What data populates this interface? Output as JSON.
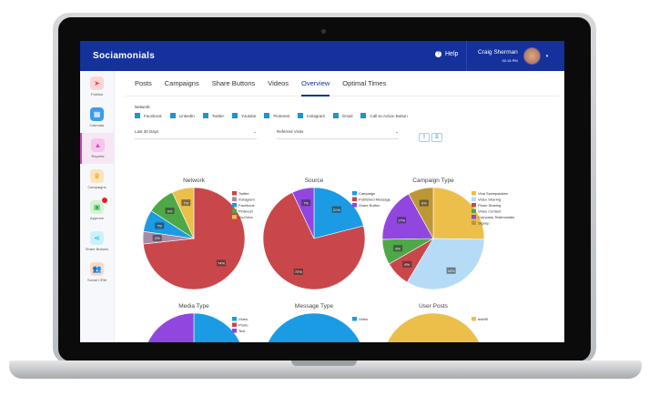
{
  "header": {
    "logo": "Sociamonials",
    "help": "Help",
    "user_name": "Craig Sherman",
    "time": "02:16 PM"
  },
  "sidebar": {
    "items": [
      {
        "label": "Publish",
        "icon": "paper-plane-icon",
        "color": "#fcd5d5",
        "fg": "#e84a4a"
      },
      {
        "label": "Calendar",
        "icon": "calendar-icon",
        "color": "#3b9cf0",
        "fg": "#fff"
      },
      {
        "label": "Reports",
        "icon": "chart-icon",
        "color": "#f7c6ee",
        "fg": "#d050c0"
      },
      {
        "label": "Campaigns",
        "icon": "trophy-icon",
        "color": "#fde3b8",
        "fg": "#e7a326"
      },
      {
        "label": "Approve",
        "icon": "image-check-icon",
        "color": "#d3f3d6",
        "fg": "#3bb24a"
      },
      {
        "label": "Share Buttons",
        "icon": "share-icon",
        "color": "#c8f2fb",
        "fg": "#1eaed2"
      },
      {
        "label": "Social CRM",
        "icon": "users-icon",
        "color": "#fdd8c6",
        "fg": "#ea7b3f"
      }
    ]
  },
  "tabs": [
    {
      "label": "Posts"
    },
    {
      "label": "Campaigns"
    },
    {
      "label": "Share Buttons"
    },
    {
      "label": "Videos"
    },
    {
      "label": "Overview",
      "active": true
    },
    {
      "label": "Optimal Times"
    }
  ],
  "filters": {
    "network_label": "Network:",
    "networks": [
      "Facebook",
      "LinkedIn",
      "Twitter",
      "Youtube",
      "Pinterest",
      "Instagram",
      "Email",
      "Call-to-Action Button"
    ],
    "date_range": "Last 30 Days",
    "metric": "Referred Visits"
  },
  "chart_data": [
    {
      "type": "pie",
      "title": "Network",
      "labels": [
        "Twitter",
        "Instagram",
        "Facebook",
        "Pinterest",
        "YouTube"
      ],
      "values": [
        74,
        4,
        7,
        9,
        7
      ],
      "colors": [
        "#c9474b",
        "#a98aa6",
        "#1b9be3",
        "#4ea847",
        "#ecbf4b"
      ],
      "show_labels": [
        true,
        true,
        true,
        true,
        true
      ]
    },
    {
      "type": "pie",
      "title": "Source",
      "labels": [
        "Campaign",
        "Published Message",
        "Share Button"
      ],
      "values": [
        21,
        72,
        7
      ],
      "colors": [
        "#1b9be3",
        "#c9474b",
        "#9146e0"
      ],
      "show_labels": [
        true,
        true,
        true
      ]
    },
    {
      "type": "pie",
      "title": "Campaign Type",
      "labels": [
        "Viral Sweepstakes",
        "Video Sharing",
        "Photo Sharing",
        "Video Contest",
        "Company Testimonials",
        "Signup"
      ],
      "values": [
        25,
        33,
        8,
        8,
        17,
        8
      ],
      "colors": [
        "#ecbf4b",
        "#b5dbf7",
        "#c9474b",
        "#4ea847",
        "#9146e0",
        "#bd9735"
      ],
      "show_labels": [
        false,
        true,
        true,
        true,
        true,
        true
      ]
    },
    {
      "type": "pie",
      "title": "Media Type",
      "labels": [
        "Video",
        "Photo",
        "Text"
      ],
      "values": [
        50,
        0.5,
        49.5
      ],
      "colors": [
        "#1b9be3",
        "#c9474b",
        "#9146e0"
      ],
      "show_labels": [
        false,
        false,
        false
      ]
    },
    {
      "type": "pie",
      "title": "Message Type",
      "labels": [
        "Video"
      ],
      "values": [
        100
      ],
      "colors": [
        "#1b9be3"
      ],
      "show_labels": [
        false
      ]
    },
    {
      "type": "pie",
      "title": "User Posts",
      "labels": [
        "test95"
      ],
      "values": [
        100
      ],
      "colors": [
        "#ecbf4b"
      ],
      "show_labels": [
        false
      ]
    }
  ]
}
